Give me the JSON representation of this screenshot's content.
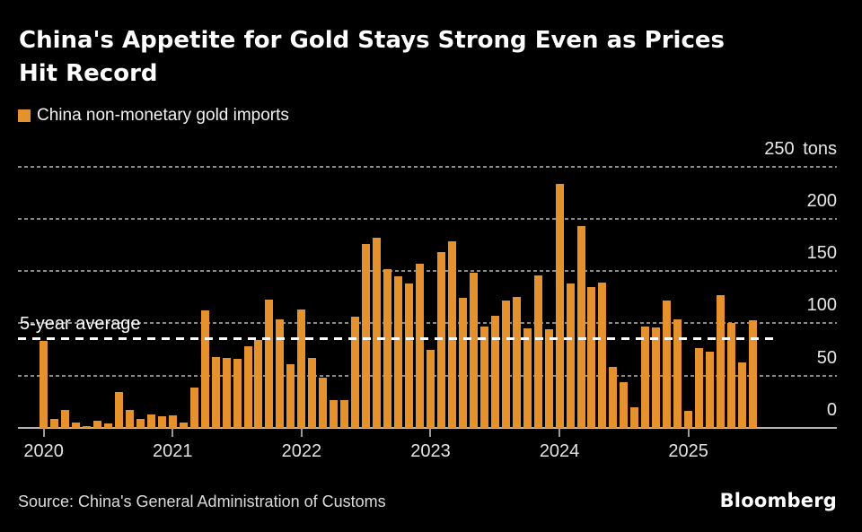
{
  "header": {
    "title_lines": [
      "China's Appetite for Gold Stays Strong Even as Prices",
      "Hit Record"
    ],
    "legend": {
      "label": "China non-monetary gold imports",
      "swatch_color": "#E5912D"
    }
  },
  "footer": {
    "source": "Source: China's General Administration of Customs",
    "logo": "Bloomberg"
  },
  "chart_data": {
    "type": "bar",
    "title": "China's Appetite for Gold Stays Strong Even as Prices Hit Record",
    "legend_entries": [
      "China non-monetary gold imports"
    ],
    "legend_position": "top-left",
    "unit": "tons",
    "ylim": [
      0,
      250
    ],
    "yticks": [
      0,
      50,
      100,
      150,
      200,
      250
    ],
    "ytick_labels": [
      "0",
      "50",
      "100",
      "150",
      "200",
      "250 tons"
    ],
    "ytick_position": "right",
    "grid": "horizontal-dotted",
    "xtick_labels": [
      "2020",
      "2021",
      "2022",
      "2023",
      "2024",
      "2025"
    ],
    "x_start_month": "2020-01",
    "x_end_month": "2025-07",
    "average_line": {
      "label": "5-year average",
      "value": 86,
      "style": "dashed-white"
    },
    "series": [
      {
        "name": "China non-monetary gold imports",
        "color": "#E5912D",
        "values": [
          83,
          9,
          17,
          5,
          2,
          7,
          4,
          34,
          17,
          9,
          13,
          11,
          12,
          5,
          39,
          112,
          68,
          67,
          66,
          78,
          84,
          123,
          104,
          61,
          113,
          67,
          48,
          27,
          27,
          106,
          176,
          182,
          152,
          145,
          138,
          157,
          75,
          168,
          178,
          124,
          148,
          97,
          107,
          122,
          125,
          95,
          146,
          94,
          233,
          138,
          193,
          135,
          139,
          58,
          44,
          20,
          97,
          96,
          122,
          104,
          16,
          76,
          73,
          127,
          100,
          63,
          103
        ]
      }
    ]
  }
}
